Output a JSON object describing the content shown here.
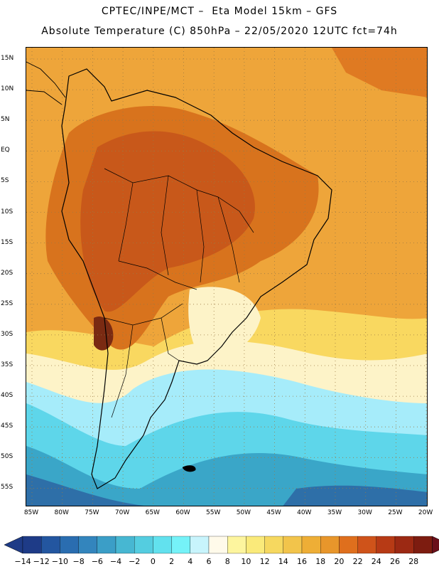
{
  "title": {
    "line1": "CPTEC/INPE/MCT –  Eta Model 15km – GFS",
    "line2": "Absolute Temperature (C) 850hPa – 22/05/2020 12UTC fct=74h"
  },
  "map": {
    "lat_labels": [
      "15N",
      "10N",
      "5N",
      "EQ",
      "5S",
      "10S",
      "15S",
      "20S",
      "25S",
      "30S",
      "35S",
      "40S",
      "45S",
      "50S",
      "55S"
    ],
    "lon_labels": [
      "85W",
      "80W",
      "75W",
      "70W",
      "65W",
      "60W",
      "55W",
      "50W",
      "45W",
      "40W",
      "35W",
      "30W",
      "25W",
      "20W"
    ],
    "colors": {
      "warm_background": "#eea53a",
      "hot": "#d8731d",
      "hotter": "#c8581a",
      "hottest": "#7a2a12",
      "mild": "#f9d860",
      "pale": "#fdf3c8",
      "cool": "#a6ecfa",
      "cyan": "#5ed6ea",
      "teal": "#3aa6c8",
      "deep": "#2e6fa8"
    }
  },
  "colorbar": {
    "colors": [
      "#1e3b87",
      "#2356a0",
      "#2a6db0",
      "#3385bd",
      "#3b9ec7",
      "#47b7d2",
      "#54cde0",
      "#62e1ee",
      "#75f2f8",
      "#c8f4fc",
      "#fffaea",
      "#fdf59e",
      "#faea7a",
      "#f6d85f",
      "#f2c44b",
      "#eeae36",
      "#e8962b",
      "#df6f1d",
      "#cf531a",
      "#b73a15",
      "#9c2913",
      "#7d1c10"
    ],
    "labels": [
      "−14",
      "−12",
      "−10",
      "−8",
      "−6",
      "−4",
      "−2",
      "0",
      "2",
      "4",
      "6",
      "8",
      "10",
      "12",
      "14",
      "16",
      "18",
      "20",
      "22",
      "24",
      "26",
      "28"
    ]
  }
}
